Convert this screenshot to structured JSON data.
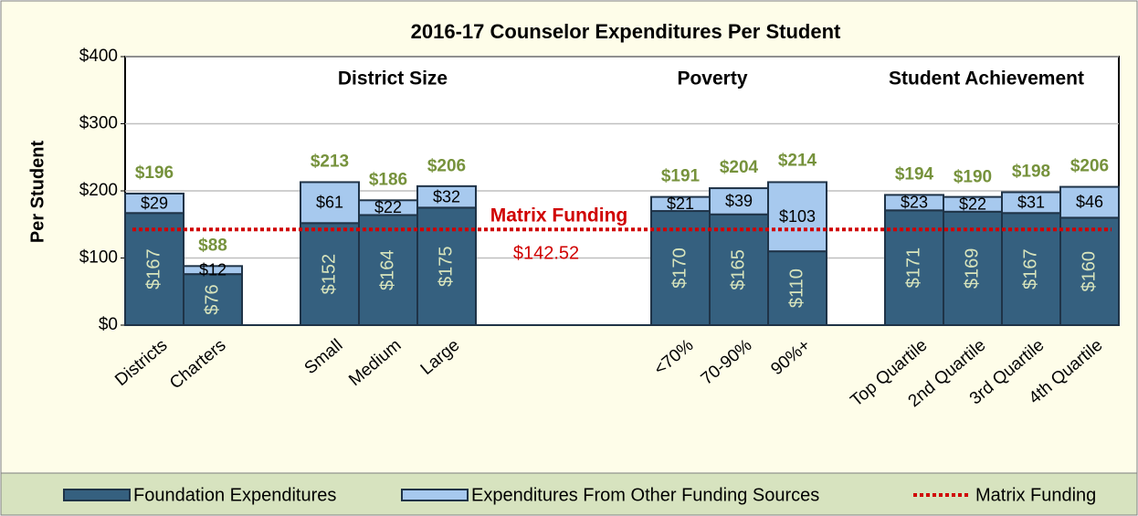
{
  "chart_data": {
    "type": "bar",
    "stacked": true,
    "title": "2016-17 Counselor Expenditures Per Student",
    "ylabel": "Per Student",
    "group_labels": [
      "District Size",
      "Poverty",
      "Student Achievement"
    ],
    "categories": [
      "Districts",
      "Charters",
      null,
      "Small",
      "Medium",
      "Large",
      null,
      null,
      null,
      "<70%",
      "70-90%",
      "90%+",
      null,
      "Top Quartile",
      "2nd Quartile",
      "3rd Quartile",
      "4th Quartile"
    ],
    "series": [
      {
        "name": "Foundation Expenditures",
        "color": "#35607f",
        "values": [
          167,
          76,
          null,
          152,
          164,
          175,
          null,
          null,
          null,
          170,
          165,
          110,
          null,
          171,
          169,
          167,
          160
        ],
        "value_labels": [
          "$167",
          "$76",
          null,
          "$152",
          "$164",
          "$175",
          null,
          null,
          null,
          "$170",
          "$165",
          "$110",
          null,
          "$171",
          "$169",
          "$167",
          "$160"
        ]
      },
      {
        "name": "Expenditures From Other Funding Sources",
        "color": "#a7c9ee",
        "values": [
          29,
          12,
          null,
          61,
          22,
          32,
          null,
          null,
          null,
          21,
          39,
          103,
          null,
          23,
          22,
          31,
          46
        ],
        "value_labels": [
          "$29",
          "$12",
          null,
          "$61",
          "$22",
          "$32",
          null,
          null,
          null,
          "$21",
          "$39",
          "$103",
          null,
          "$23",
          "$22",
          "$31",
          "$46"
        ]
      }
    ],
    "totals": [
      196,
      88,
      null,
      213,
      186,
      206,
      null,
      null,
      null,
      191,
      204,
      214,
      null,
      194,
      190,
      198,
      206
    ],
    "totals_labels": [
      "$196",
      "$88",
      null,
      "$213",
      "$186",
      "$206",
      null,
      null,
      null,
      "$191",
      "$204",
      "$214",
      null,
      "$194",
      "$190",
      "$198",
      "$206"
    ],
    "totals_color": "#76923c",
    "reference_line": {
      "name": "Matrix Funding",
      "value": 142.52,
      "label": "$142.52",
      "color": "#d00000"
    },
    "ylim": [
      0,
      400
    ],
    "yticks": [
      {
        "value": 0,
        "label": "$0"
      },
      {
        "value": 100,
        "label": "$100"
      },
      {
        "value": 200,
        "label": "$200"
      },
      {
        "value": 300,
        "label": "$300"
      },
      {
        "value": 400,
        "label": "$400"
      }
    ],
    "grid": true,
    "legend": "bottom"
  }
}
